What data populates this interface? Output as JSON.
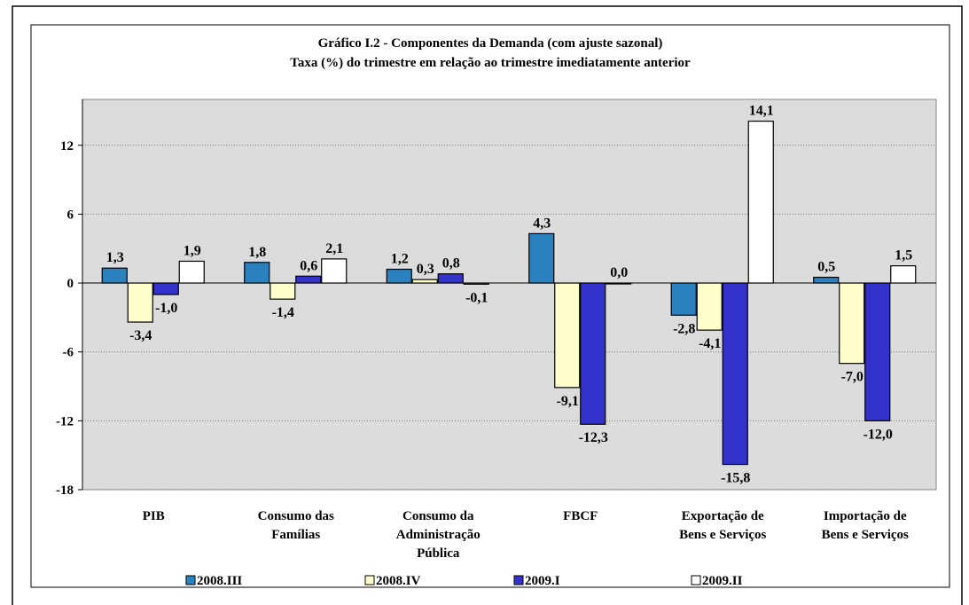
{
  "chart_data": {
    "type": "bar",
    "title": "Gráfico I.2 - Componentes da Demanda (com ajuste sazonal)",
    "subtitle": "Taxa (%) do trimestre em relação ao trimestre imediatamente anterior",
    "categories": [
      "PIB",
      "Consumo das\nFamílias",
      "Consumo da\nAdministração\nPública",
      "FBCF",
      "Exportação de\nBens e Serviços",
      "Importação de\nBens e Serviços"
    ],
    "series": [
      {
        "name": "2008.III",
        "color": "#2b80be",
        "values": [
          1.3,
          1.8,
          1.2,
          4.3,
          -2.8,
          0.5
        ],
        "value_labels": [
          "1,3",
          "1,8",
          "1,2",
          "4,3",
          "-2,8",
          "0,5"
        ]
      },
      {
        "name": "2008.IV",
        "color": "#ffffcc",
        "values": [
          -3.4,
          -1.4,
          0.3,
          -9.1,
          -4.1,
          -7.0
        ],
        "value_labels": [
          "-3,4",
          "-1,4",
          "0,3",
          "-9,1",
          "-4,1",
          "-7,0"
        ]
      },
      {
        "name": "2009.I",
        "color": "#3333cc",
        "values": [
          -1.0,
          0.6,
          0.8,
          -12.3,
          -15.8,
          -12.0
        ],
        "value_labels": [
          "-1,0",
          "0,6",
          "0,8",
          "-12,3",
          "-15,8",
          "-12,0"
        ]
      },
      {
        "name": "2009.II",
        "color": "#ffffff",
        "values": [
          1.9,
          2.1,
          -0.1,
          0.0,
          14.1,
          1.5
        ],
        "value_labels": [
          "1,9",
          "2,1",
          "-0,1",
          "0,0",
          "14,1",
          "1,5"
        ]
      }
    ],
    "ylim": [
      -18,
      16
    ],
    "yticks": [
      -18,
      -12,
      -6,
      0,
      6,
      12
    ],
    "grid": true
  }
}
